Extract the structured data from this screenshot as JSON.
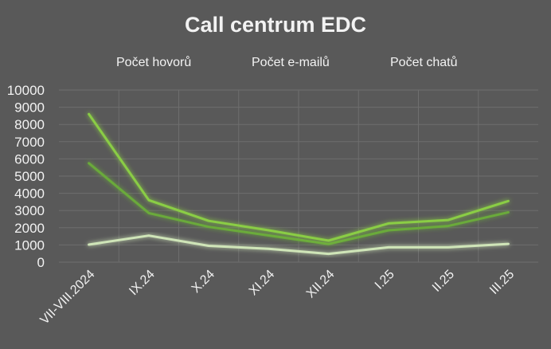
{
  "chart_data": {
    "type": "line",
    "title": "Call centrum EDC",
    "categories": [
      "VII-VIII.2024",
      "IX.24",
      "X.24",
      "XI.24",
      "XII.24",
      "I.25",
      "II.25",
      "III.25"
    ],
    "series": [
      {
        "name": "Počet hovorů",
        "color": "#6aaa3a",
        "values": [
          5750,
          2850,
          2050,
          1550,
          1050,
          1850,
          2100,
          2900
        ]
      },
      {
        "name": "Počet e-mailů",
        "color": "#8acd45",
        "values": [
          8600,
          3600,
          2400,
          1850,
          1250,
          2250,
          2450,
          3550
        ]
      },
      {
        "name": "Počet chatů",
        "color": "#cfe5b8",
        "values": [
          1020,
          1540,
          950,
          780,
          480,
          860,
          860,
          1060
        ]
      }
    ],
    "ylim": [
      0,
      10000
    ],
    "yticks": [
      0,
      1000,
      2000,
      3000,
      4000,
      5000,
      6000,
      7000,
      8000,
      9000,
      10000
    ],
    "grid": true,
    "legend_position": "top"
  }
}
